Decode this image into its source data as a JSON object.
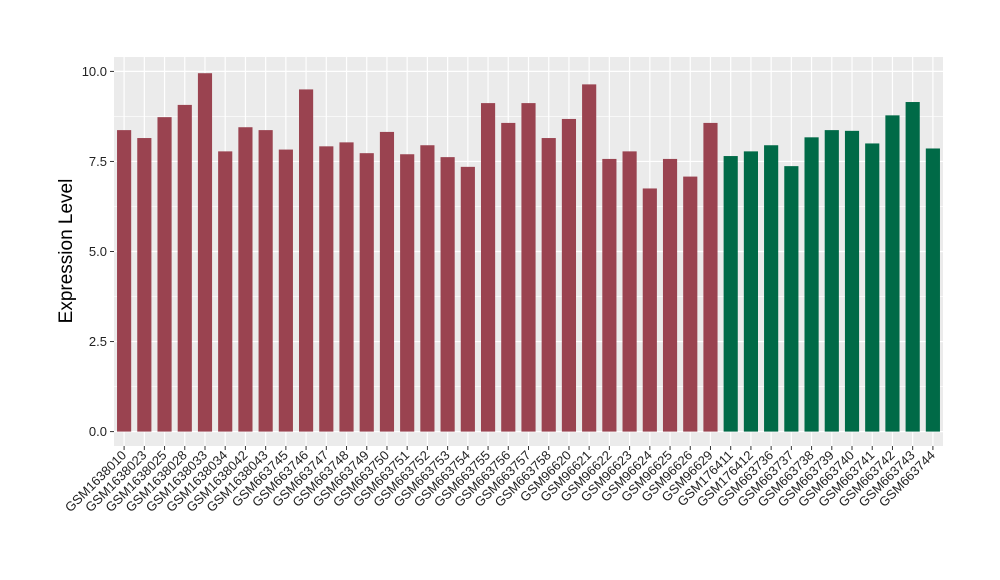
{
  "chart_data": {
    "type": "bar",
    "title": "",
    "xlabel": "",
    "ylabel": "Expression Level",
    "ylim": [
      -0.4,
      10.4
    ],
    "yticks": [
      0.0,
      2.5,
      5.0,
      7.5,
      10.0
    ],
    "ytick_labels": [
      "0.0",
      "2.5",
      "5.0",
      "7.5",
      "10.0"
    ],
    "grid": true,
    "legend": "none",
    "background": "#ebebeb",
    "gridline_color": "#ffffff",
    "colors": {
      "group_1": "#9a4350",
      "group_2": "#006a47"
    },
    "categories": [
      "GSM1638010",
      "GSM1638023",
      "GSM1638025",
      "GSM1638028",
      "GSM1638033",
      "GSM1638034",
      "GSM1638042",
      "GSM1638043",
      "GSM663745",
      "GSM663746",
      "GSM663747",
      "GSM663748",
      "GSM663749",
      "GSM663750",
      "GSM663751",
      "GSM663752",
      "GSM663753",
      "GSM663754",
      "GSM663755",
      "GSM663756",
      "GSM663757",
      "GSM663758",
      "GSM96620",
      "GSM96621",
      "GSM96622",
      "GSM96623",
      "GSM96624",
      "GSM96625",
      "GSM96626",
      "GSM96629",
      "GSM176411",
      "GSM176412",
      "GSM663736",
      "GSM663737",
      "GSM663738",
      "GSM663739",
      "GSM663740",
      "GSM663741",
      "GSM663742",
      "GSM663743",
      "GSM663744"
    ],
    "values": [
      8.37,
      8.15,
      8.73,
      9.07,
      9.95,
      7.78,
      8.45,
      8.37,
      7.83,
      9.5,
      7.92,
      8.03,
      7.73,
      8.32,
      7.7,
      7.95,
      7.62,
      7.35,
      9.12,
      8.57,
      9.12,
      8.15,
      8.68,
      9.64,
      7.57,
      7.78,
      6.75,
      7.57,
      7.08,
      8.57,
      7.65,
      7.78,
      7.95,
      7.37,
      8.17,
      8.37,
      8.35,
      8.0,
      8.78,
      9.15,
      7.86
    ],
    "groups": [
      1,
      1,
      1,
      1,
      1,
      1,
      1,
      1,
      1,
      1,
      1,
      1,
      1,
      1,
      1,
      1,
      1,
      1,
      1,
      1,
      1,
      1,
      1,
      1,
      1,
      1,
      1,
      1,
      1,
      1,
      2,
      2,
      2,
      2,
      2,
      2,
      2,
      2,
      2,
      2,
      2
    ]
  }
}
